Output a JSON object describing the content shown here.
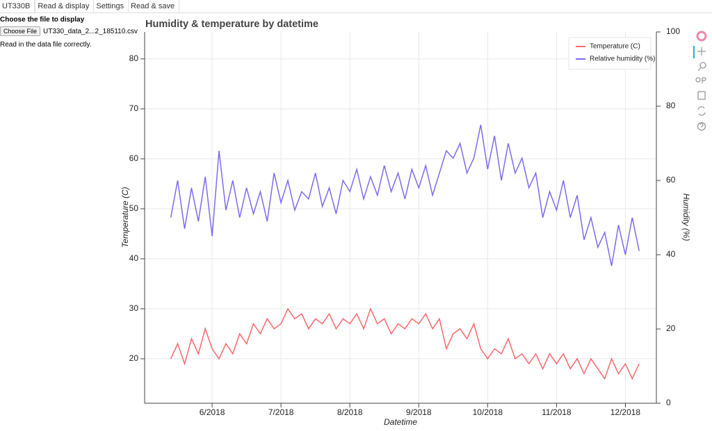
{
  "tabs": [
    "UT330B",
    "Read & display",
    "Settings",
    "Read & save"
  ],
  "panel": {
    "heading": "Choose the file to display",
    "button": "Choose File",
    "file_name": "UT330_data_2...2_185110.csv",
    "status": "Read in the data file correctly."
  },
  "chart_data": {
    "type": "line",
    "title": "Humidity & temperature by datetime",
    "x_label": "Datetime",
    "y_label": "Temperature (C)",
    "y2_label": "Humidity (%)",
    "x": [
      5.4,
      5.5,
      5.6,
      5.7,
      5.8,
      5.9,
      6.0,
      6.1,
      6.2,
      6.3,
      6.4,
      6.5,
      6.6,
      6.7,
      6.8,
      6.9,
      7.0,
      7.1,
      7.2,
      7.3,
      7.4,
      7.5,
      7.6,
      7.7,
      7.8,
      7.9,
      8.0,
      8.1,
      8.2,
      8.3,
      8.4,
      8.5,
      8.6,
      8.7,
      8.8,
      8.9,
      9.0,
      9.1,
      9.2,
      9.3,
      9.4,
      9.5,
      9.6,
      9.7,
      9.8,
      9.9,
      10.0,
      10.1,
      10.2,
      10.3,
      10.4,
      10.5,
      10.6,
      10.7,
      10.8,
      10.9,
      11.0,
      11.1,
      11.2,
      11.3,
      11.4,
      11.5,
      11.6,
      11.7,
      11.8,
      11.9,
      12.0,
      12.1,
      12.2
    ],
    "series": [
      {
        "name": "Temperature (C)",
        "color": "#f8676b",
        "values": [
          20,
          23,
          19,
          24,
          21,
          26,
          22,
          20,
          23,
          21,
          25,
          23,
          27,
          25,
          28,
          26,
          27,
          30,
          28,
          29,
          26,
          28,
          27,
          29,
          26,
          28,
          27,
          29,
          26,
          30,
          27,
          28,
          25,
          27,
          26,
          28,
          27,
          29,
          26,
          28,
          22,
          25,
          26,
          24,
          27,
          22,
          20,
          22,
          21,
          24,
          20,
          21,
          19,
          21,
          18,
          21,
          19,
          21,
          18,
          20,
          17,
          20,
          18,
          16,
          20,
          17,
          19,
          16,
          19
        ]
      },
      {
        "name": "Relative humidity (%)",
        "color": "#7b6af0",
        "axis": "y2",
        "values": [
          50,
          60,
          47,
          58,
          49,
          61,
          45,
          68,
          52,
          60,
          50,
          58,
          51,
          57,
          49,
          62,
          54,
          60,
          52,
          57,
          55,
          62,
          53,
          58,
          51,
          60,
          57,
          63,
          55,
          61,
          56,
          64,
          57,
          62,
          55,
          63,
          58,
          64,
          56,
          62,
          68,
          66,
          70,
          62,
          66,
          75,
          63,
          72,
          60,
          70,
          62,
          66,
          58,
          62,
          50,
          57,
          52,
          60,
          50,
          56,
          44,
          50,
          42,
          46,
          37,
          48,
          40,
          50,
          41
        ]
      }
    ],
    "xlim": [
      5.02,
      12.45
    ],
    "xticks": [
      {
        "value": 6,
        "label": "6/2018"
      },
      {
        "value": 7,
        "label": "7/2018"
      },
      {
        "value": 8,
        "label": "8/2018"
      },
      {
        "value": 9,
        "label": "9/2018"
      },
      {
        "value": 10,
        "label": "10/2018"
      },
      {
        "value": 11,
        "label": "11/2018"
      },
      {
        "value": 12,
        "label": "12/2018"
      }
    ],
    "ylim": [
      11.1,
      85.4
    ],
    "yticks": [
      20,
      30,
      40,
      50,
      60,
      70,
      80
    ],
    "y2lim": [
      0,
      100
    ],
    "y2ticks": [
      0,
      20,
      40,
      60,
      80,
      100
    ],
    "grid": true,
    "legend": "top_right"
  }
}
